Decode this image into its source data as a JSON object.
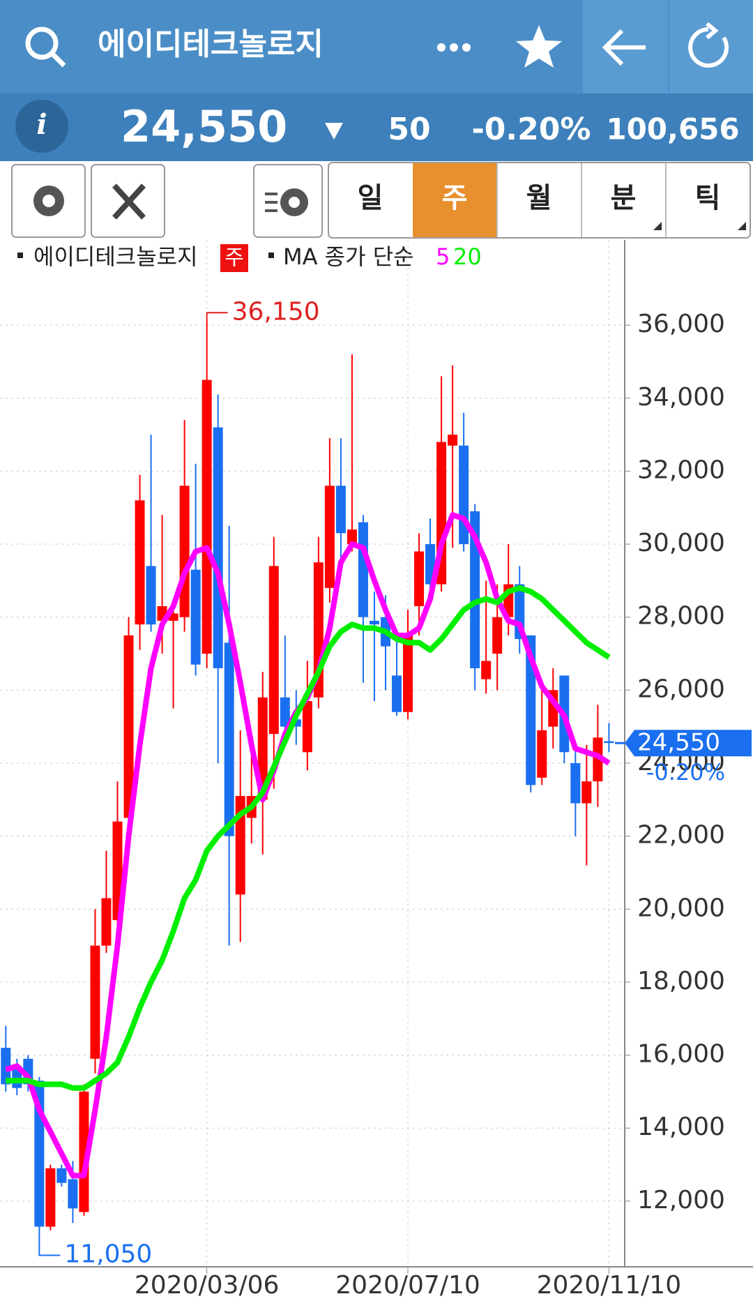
{
  "header": {
    "title": "에이디테크놀로지"
  },
  "quote": {
    "price": "24,550",
    "change": "50",
    "change_rate": "-0.20%",
    "volume": "100,656"
  },
  "tabs": [
    "일",
    "주",
    "월",
    "분",
    "틱"
  ],
  "chart_data": {
    "type": "candlestick",
    "legend_name": "에이디테크놀로지",
    "period_badge": "주",
    "ma_label": "MA 종가 단순",
    "categories": [
      null,
      null,
      null,
      null,
      null,
      null,
      null,
      null,
      null,
      null,
      null,
      null,
      null,
      null,
      null,
      null,
      null,
      null,
      "2020/03/06",
      null,
      null,
      null,
      null,
      null,
      null,
      null,
      null,
      null,
      null,
      null,
      null,
      null,
      null,
      null,
      null,
      null,
      "2020/07/10",
      null,
      null,
      null,
      null,
      null,
      null,
      null,
      null,
      null,
      null,
      null,
      null,
      null,
      null,
      null,
      null,
      null,
      "2020/11/10"
    ],
    "up_color": "#ff0000",
    "down_color": "#1a6ff0",
    "series": [
      {
        "name": "에이디테크놀로지",
        "open": [
          16200,
          15700,
          15900,
          15300,
          11300,
          12900,
          12600,
          11700,
          15900,
          19000,
          19700,
          22500,
          27800,
          29400,
          27900,
          27900,
          28000,
          29300,
          27000,
          33200,
          27300,
          20400,
          22500,
          23000,
          24800,
          25800,
          25200,
          24300,
          25800,
          28800,
          31600,
          30000,
          30600,
          27900,
          28000,
          26400,
          25400,
          28300,
          30000,
          28900,
          32700,
          32700,
          30900,
          26300,
          27000,
          28000,
          28900,
          27500,
          23600,
          25000,
          26400,
          24000,
          22900,
          23500,
          24600
        ],
        "high": [
          16800,
          15900,
          16000,
          15400,
          13000,
          13000,
          13100,
          15200,
          20000,
          21600,
          23500,
          28000,
          31900,
          33000,
          30800,
          28300,
          33400,
          32200,
          36150,
          34100,
          30500,
          24900,
          24300,
          26500,
          30200,
          27500,
          26000,
          26800,
          30200,
          32900,
          32900,
          35200,
          30800,
          28700,
          28600,
          27600,
          28200,
          30300,
          30700,
          34600,
          34900,
          33600,
          31100,
          29000,
          28900,
          30000,
          29400,
          27500,
          26000,
          26600,
          26400,
          24500,
          24500,
          25600,
          25100
        ],
        "low": [
          15000,
          14900,
          15000,
          11050,
          11200,
          12400,
          11400,
          11600,
          15500,
          18800,
          19300,
          22300,
          27100,
          27600,
          27000,
          25500,
          27600,
          26400,
          26600,
          24000,
          19000,
          19100,
          21800,
          21500,
          23300,
          24500,
          24500,
          23800,
          25500,
          28400,
          29600,
          29800,
          26200,
          25700,
          26000,
          25300,
          25200,
          27500,
          28500,
          28700,
          29900,
          29800,
          26000,
          25900,
          26000,
          27500,
          27000,
          23200,
          23400,
          24400,
          24000,
          22000,
          21200,
          22800,
          24300
        ],
        "close": [
          15200,
          15100,
          15200,
          11300,
          12900,
          12500,
          11800,
          15000,
          19000,
          20300,
          22400,
          27500,
          31200,
          27800,
          28300,
          28100,
          31600,
          26700,
          34500,
          26600,
          22000,
          23100,
          23100,
          25800,
          29400,
          25000,
          25000,
          25700,
          29500,
          31600,
          30300,
          30400,
          28000,
          27800,
          27200,
          25400,
          27500,
          29800,
          28900,
          32800,
          33000,
          30000,
          26600,
          26800,
          28000,
          28900,
          27400,
          23400,
          24900,
          26000,
          24300,
          22900,
          23500,
          24700,
          24550
        ]
      }
    ],
    "ma": [
      {
        "name": "5",
        "color": "#ff00ff",
        "values": [
          15600,
          15700,
          15400,
          14500,
          13900,
          13300,
          12700,
          12700,
          14500,
          16500,
          19000,
          22000,
          24500,
          26600,
          27800,
          28300,
          29200,
          29800,
          29900,
          29200,
          27800,
          26200,
          24500,
          23000,
          23800,
          24800,
          25400,
          25800,
          26500,
          27700,
          29500,
          30000,
          29900,
          29000,
          28200,
          27500,
          27500,
          27700,
          28500,
          30000,
          30800,
          30700,
          30200,
          29500,
          28500,
          27900,
          27800,
          26900,
          26100,
          25700,
          25300,
          24400,
          24300,
          24200,
          24000
        ]
      },
      {
        "name": "20",
        "color": "#00ee00",
        "values": [
          15300,
          15300,
          15300,
          15200,
          15200,
          15200,
          15100,
          15100,
          15300,
          15500,
          15800,
          16500,
          17300,
          18000,
          18600,
          19400,
          20300,
          20800,
          21600,
          22000,
          22300,
          22600,
          22800,
          23200,
          23900,
          24600,
          25300,
          25900,
          26500,
          27200,
          27600,
          27800,
          27700,
          27700,
          27600,
          27400,
          27300,
          27300,
          27100,
          27400,
          27800,
          28200,
          28400,
          28500,
          28400,
          28700,
          28800,
          28700,
          28500,
          28200,
          27900,
          27600,
          27300,
          27100,
          26900
        ]
      }
    ],
    "annotations": [
      {
        "value": 36150,
        "label": "36,150",
        "color": "#e02020"
      },
      {
        "value": 11050,
        "label": "11,050",
        "color": "#1a6ff0"
      }
    ],
    "last_price": {
      "value": 24550,
      "label": "24,550"
    },
    "last_change": "-0.20%",
    "ylim": [
      10200,
      38200
    ],
    "yticks": [
      {
        "value": 12000,
        "label": "12,000"
      },
      {
        "value": 14000,
        "label": "14,000"
      },
      {
        "value": 16000,
        "label": "16,000"
      },
      {
        "value": 18000,
        "label": "18,000"
      },
      {
        "value": 20000,
        "label": "20,000"
      },
      {
        "value": 22000,
        "label": "22,000"
      },
      {
        "value": 24000,
        "label": "24,000"
      },
      {
        "value": 26000,
        "label": "26,000"
      },
      {
        "value": 28000,
        "label": "28,000"
      },
      {
        "value": 30000,
        "label": "30,000"
      },
      {
        "value": 32000,
        "label": "32,000"
      },
      {
        "value": 34000,
        "label": "34,000"
      },
      {
        "value": 36000,
        "label": "36,000"
      }
    ],
    "grid": true
  }
}
